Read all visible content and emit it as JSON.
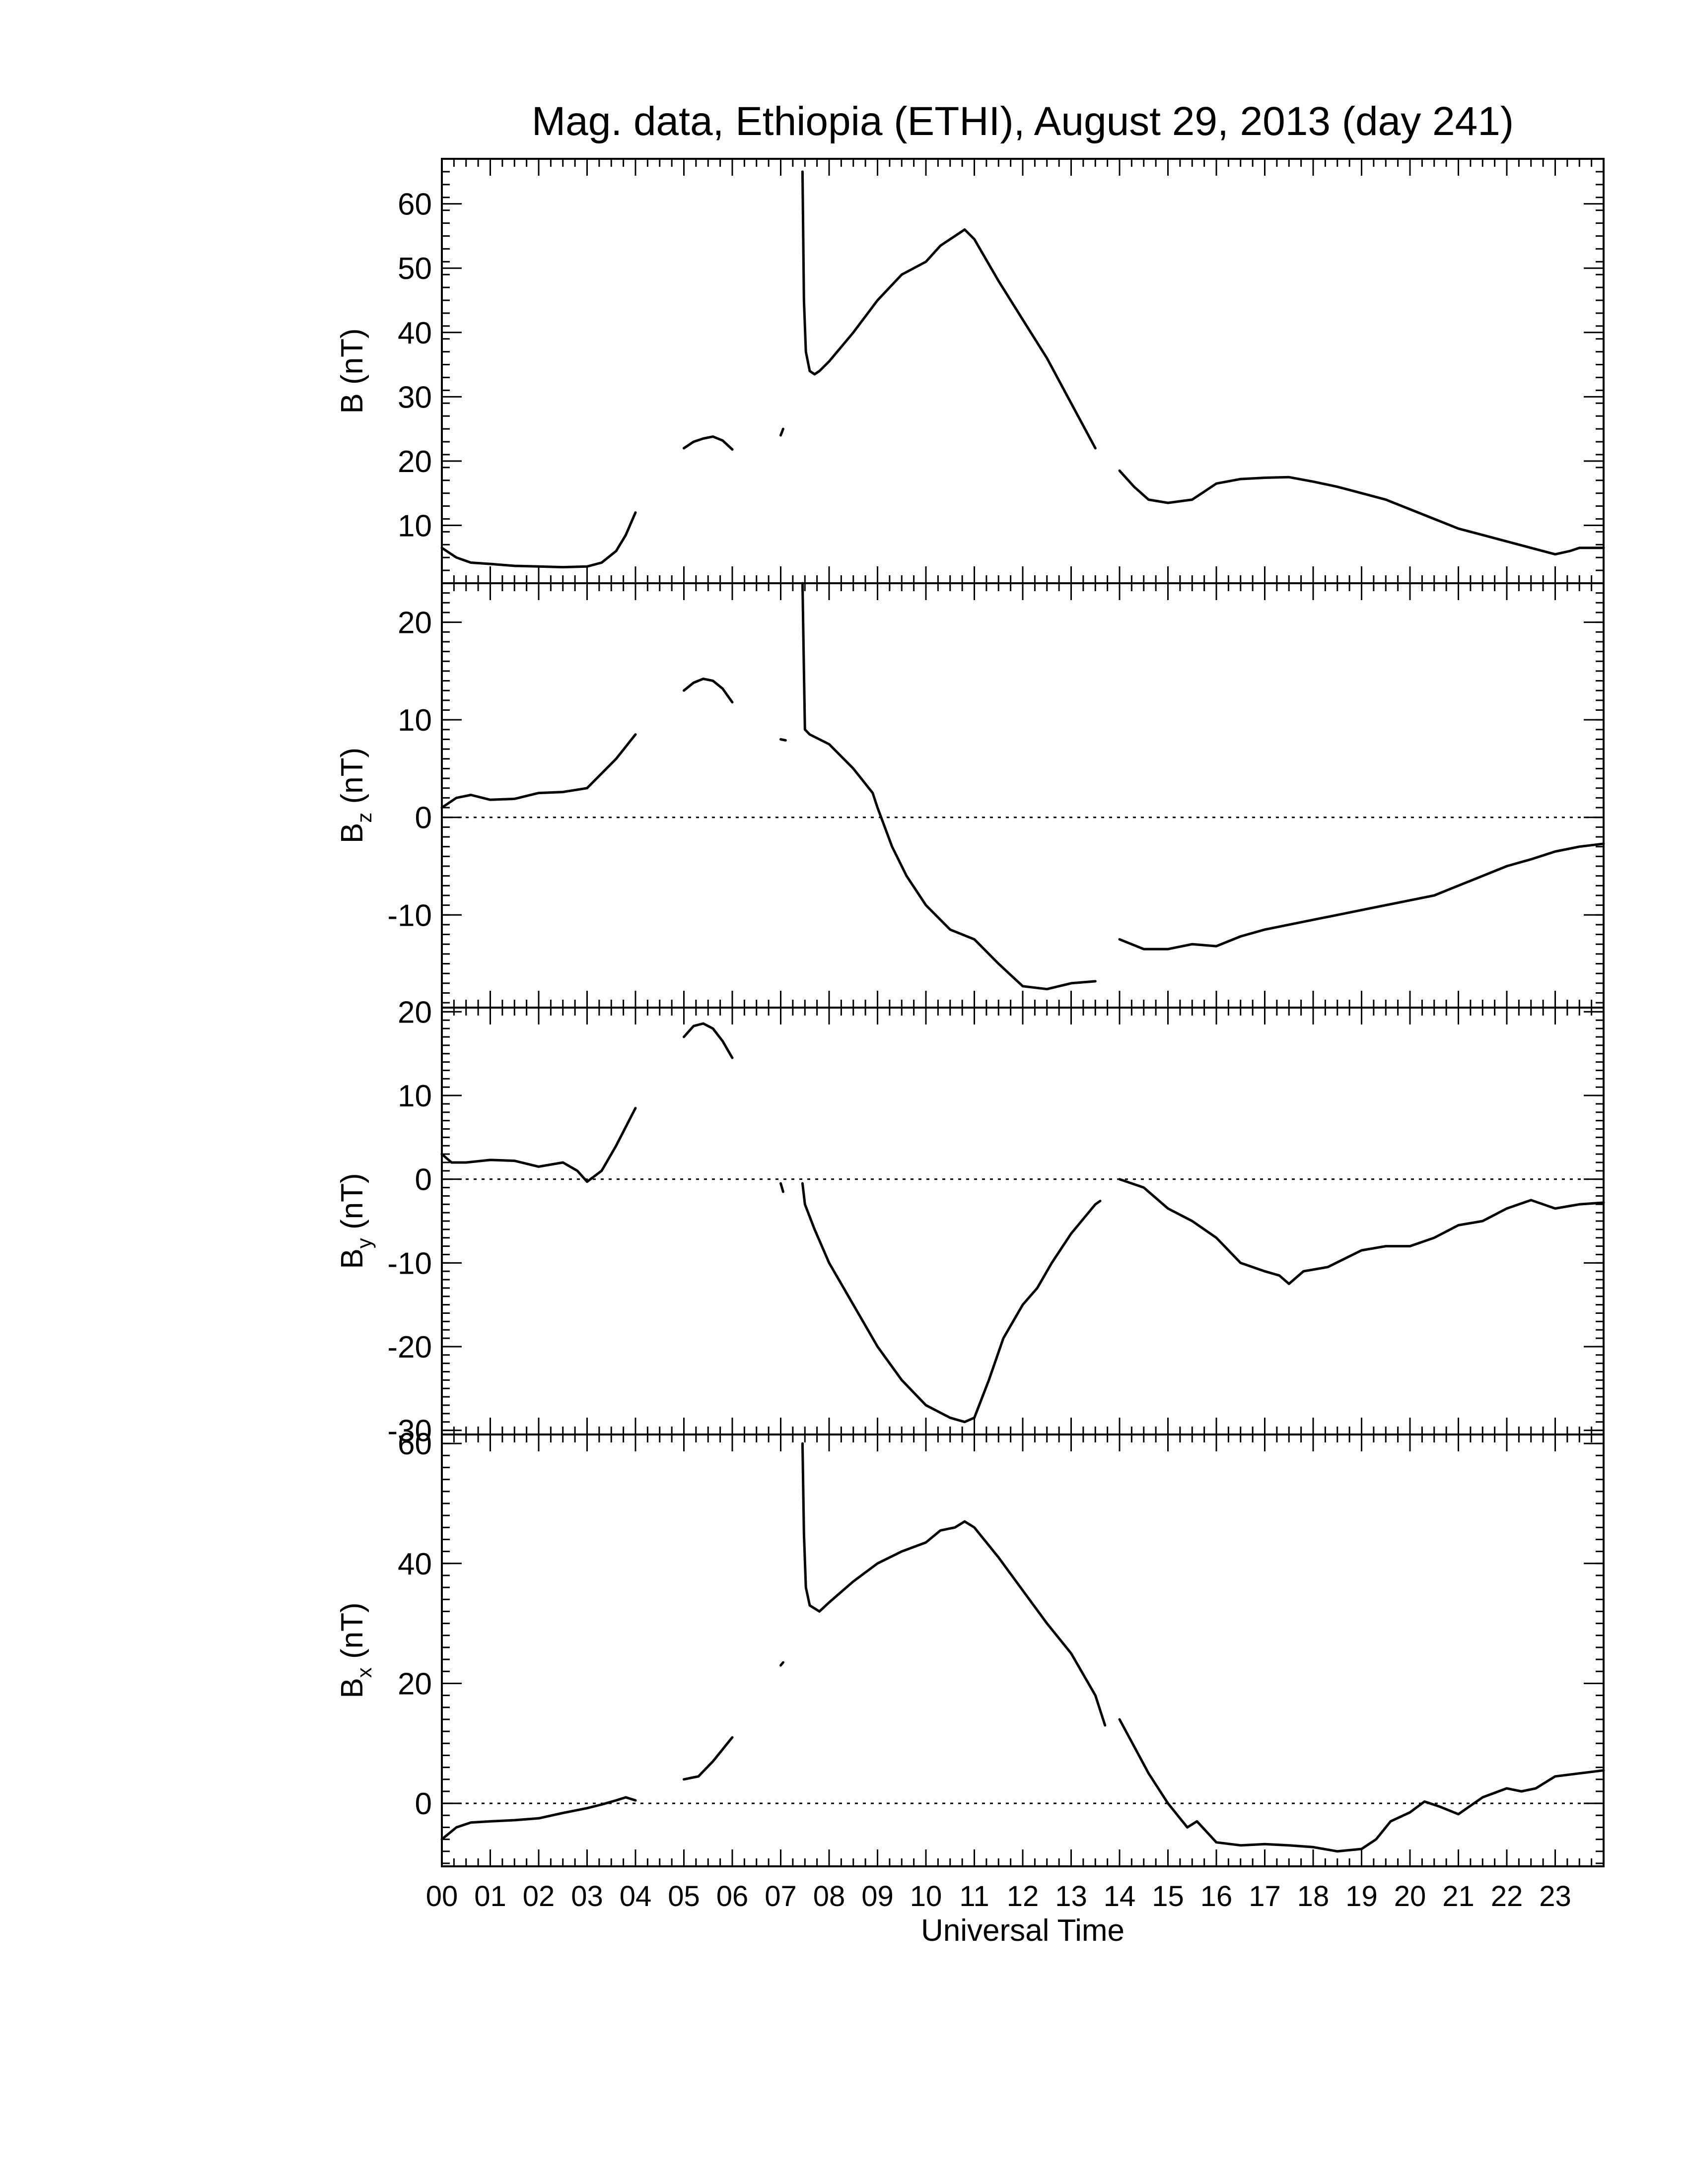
{
  "chart_data": {
    "type": "line",
    "title": "Mag. data, Ethiopia (ETHI), August 29, 2013 (day 241)",
    "xlabel": "Universal Time",
    "x_units": "hours UT",
    "xlim": [
      0,
      24
    ],
    "x_tick_labels": [
      "00",
      "01",
      "02",
      "03",
      "04",
      "05",
      "06",
      "07",
      "08",
      "09",
      "10",
      "11",
      "12",
      "13",
      "14",
      "15",
      "16",
      "17",
      "18",
      "19",
      "20",
      "21",
      "22",
      "23"
    ],
    "grid": false,
    "panels": [
      {
        "id": "B",
        "ylabel_main": "B",
        "ylabel_sub": "",
        "ylabel_unit": " (nT)",
        "ylim": [
          1,
          67
        ],
        "yticks": [
          10,
          20,
          30,
          40,
          50,
          60
        ],
        "ytick_labels": [
          "10",
          "20",
          "30",
          "40",
          "50",
          "60"
        ],
        "zero_line": false,
        "segments": [
          [
            [
              0,
              6.5
            ],
            [
              0.3,
              5
            ],
            [
              0.6,
              4.2
            ],
            [
              1,
              4
            ],
            [
              1.5,
              3.7
            ],
            [
              2,
              3.6
            ],
            [
              2.5,
              3.5
            ],
            [
              3,
              3.6
            ],
            [
              3.3,
              4.2
            ],
            [
              3.6,
              6
            ],
            [
              3.8,
              8.5
            ],
            [
              4,
              12
            ]
          ],
          [
            [
              5,
              22
            ],
            [
              5.2,
              23
            ],
            [
              5.4,
              23.5
            ],
            [
              5.6,
              23.8
            ],
            [
              5.8,
              23.2
            ],
            [
              6,
              21.8
            ]
          ],
          [
            [
              7,
              24
            ],
            [
              7.05,
              25
            ]
          ],
          [
            [
              7.45,
              65
            ],
            [
              7.48,
              45
            ],
            [
              7.52,
              37
            ],
            [
              7.6,
              34
            ],
            [
              7.7,
              33.5
            ],
            [
              7.8,
              34
            ],
            [
              8,
              35.5
            ],
            [
              8.5,
              40
            ],
            [
              9,
              45
            ],
            [
              9.5,
              49
            ],
            [
              10,
              51
            ],
            [
              10.3,
              53.5
            ],
            [
              10.6,
              55
            ],
            [
              10.8,
              56
            ],
            [
              11,
              54.5
            ],
            [
              11.5,
              48
            ],
            [
              12,
              42
            ],
            [
              12.5,
              36
            ],
            [
              13,
              29
            ],
            [
              13.5,
              22
            ]
          ],
          [
            [
              14,
              18.5
            ],
            [
              14.3,
              16
            ],
            [
              14.6,
              14
            ],
            [
              15,
              13.5
            ],
            [
              15.5,
              14
            ],
            [
              16,
              16.5
            ],
            [
              16.5,
              17.2
            ],
            [
              17,
              17.4
            ],
            [
              17.5,
              17.5
            ],
            [
              18,
              16.8
            ],
            [
              18.5,
              16
            ],
            [
              19,
              15
            ],
            [
              19.5,
              14
            ],
            [
              20,
              12.5
            ],
            [
              20.5,
              11
            ],
            [
              21,
              9.5
            ],
            [
              21.5,
              8.5
            ],
            [
              22,
              7.5
            ],
            [
              22.5,
              6.5
            ],
            [
              23,
              5.5
            ],
            [
              23.3,
              6
            ],
            [
              23.5,
              6.5
            ],
            [
              24,
              6.5
            ]
          ]
        ]
      },
      {
        "id": "Bz",
        "ylabel_main": "B",
        "ylabel_sub": "z",
        "ylabel_unit": " (nT)",
        "ylim": [
          -19.5,
          24
        ],
        "yticks": [
          -10,
          0,
          10,
          20
        ],
        "ytick_labels": [
          "-10",
          "0",
          "10",
          "20"
        ],
        "zero_line": true,
        "segments": [
          [
            [
              0,
              1
            ],
            [
              0.3,
              2
            ],
            [
              0.6,
              2.3
            ],
            [
              1,
              1.8
            ],
            [
              1.5,
              1.9
            ],
            [
              2,
              2.5
            ],
            [
              2.5,
              2.6
            ],
            [
              3,
              3
            ],
            [
              3.3,
              4.5
            ],
            [
              3.6,
              6
            ],
            [
              4,
              8.5
            ]
          ],
          [
            [
              5,
              13
            ],
            [
              5.2,
              13.8
            ],
            [
              5.4,
              14.2
            ],
            [
              5.6,
              14
            ],
            [
              5.8,
              13.2
            ],
            [
              6,
              11.8
            ]
          ],
          [
            [
              7,
              8
            ],
            [
              7.1,
              7.9
            ]
          ],
          [
            [
              7.45,
              24
            ],
            [
              7.48,
              15
            ],
            [
              7.5,
              9
            ],
            [
              7.6,
              8.5
            ],
            [
              8,
              7.5
            ],
            [
              8.5,
              5
            ],
            [
              8.9,
              2.5
            ],
            [
              9,
              1
            ],
            [
              9.3,
              -3
            ],
            [
              9.6,
              -6
            ],
            [
              10,
              -9
            ],
            [
              10.5,
              -11.5
            ],
            [
              11,
              -12.5
            ],
            [
              11.5,
              -15
            ],
            [
              12,
              -17.3
            ],
            [
              12.5,
              -17.6
            ],
            [
              13,
              -17
            ],
            [
              13.5,
              -16.8
            ]
          ],
          [
            [
              14,
              -12.5
            ],
            [
              14.5,
              -13.5
            ],
            [
              15,
              -13.5
            ],
            [
              15.5,
              -13
            ],
            [
              16,
              -13.2
            ],
            [
              16.5,
              -12.2
            ],
            [
              17,
              -11.5
            ],
            [
              17.5,
              -11
            ],
            [
              18,
              -10.5
            ],
            [
              18.5,
              -10
            ],
            [
              19,
              -9.5
            ],
            [
              20,
              -8.5
            ],
            [
              20.5,
              -8
            ],
            [
              21,
              -7
            ],
            [
              21.5,
              -6
            ],
            [
              22,
              -5
            ],
            [
              22.5,
              -4.3
            ],
            [
              23,
              -3.5
            ],
            [
              23.5,
              -3
            ],
            [
              24,
              -2.7
            ]
          ]
        ]
      },
      {
        "id": "By",
        "ylabel_main": "B",
        "ylabel_sub": "y",
        "ylabel_unit": " (nT)",
        "ylim": [
          -30.5,
          20.5
        ],
        "yticks": [
          -30,
          -20,
          -10,
          0,
          10,
          20
        ],
        "ytick_labels": [
          "-30",
          "-20",
          "-10",
          "0",
          "10",
          "20"
        ],
        "zero_line": true,
        "segments": [
          [
            [
              0,
              3
            ],
            [
              0.2,
              2
            ],
            [
              0.5,
              2
            ],
            [
              1,
              2.3
            ],
            [
              1.5,
              2.2
            ],
            [
              2,
              1.5
            ],
            [
              2.5,
              2
            ],
            [
              2.8,
              1
            ],
            [
              3,
              -0.3
            ],
            [
              3.3,
              1
            ],
            [
              3.6,
              4
            ],
            [
              4,
              8.5
            ]
          ],
          [
            [
              5,
              17
            ],
            [
              5.2,
              18.3
            ],
            [
              5.4,
              18.6
            ],
            [
              5.6,
              18
            ],
            [
              5.8,
              16.5
            ],
            [
              6,
              14.5
            ]
          ],
          [
            [
              7,
              -0.5
            ],
            [
              7.05,
              -1.5
            ]
          ],
          [
            [
              7.45,
              -0.5
            ],
            [
              7.5,
              -3
            ],
            [
              7.7,
              -6
            ],
            [
              8,
              -10
            ],
            [
              8.5,
              -15
            ],
            [
              9,
              -20
            ],
            [
              9.5,
              -24
            ],
            [
              10,
              -27
            ],
            [
              10.5,
              -28.5
            ],
            [
              10.8,
              -29
            ],
            [
              11,
              -28.5
            ],
            [
              11.3,
              -24
            ],
            [
              11.6,
              -19
            ],
            [
              12,
              -15
            ],
            [
              12.3,
              -13
            ],
            [
              12.6,
              -10
            ],
            [
              13,
              -6.5
            ],
            [
              13.5,
              -3
            ],
            [
              13.6,
              -2.6
            ]
          ],
          [
            [
              14,
              0
            ],
            [
              14.5,
              -1
            ],
            [
              15,
              -3.5
            ],
            [
              15.5,
              -5
            ],
            [
              16,
              -7
            ],
            [
              16.5,
              -10
            ],
            [
              17,
              -11
            ],
            [
              17.3,
              -11.5
            ],
            [
              17.5,
              -12.5
            ],
            [
              17.8,
              -11
            ],
            [
              18.3,
              -10.5
            ],
            [
              19,
              -8.5
            ],
            [
              19.5,
              -8
            ],
            [
              20,
              -8
            ],
            [
              20.5,
              -7
            ],
            [
              21,
              -5.5
            ],
            [
              21.5,
              -5
            ],
            [
              22,
              -3.5
            ],
            [
              22.5,
              -2.5
            ],
            [
              23,
              -3.5
            ],
            [
              23.5,
              -3
            ],
            [
              24,
              -2.8
            ]
          ]
        ]
      },
      {
        "id": "Bx",
        "ylabel_main": "B",
        "ylabel_sub": "x",
        "ylabel_unit": " (nT)",
        "ylim": [
          -10.5,
          61.5
        ],
        "yticks": [
          0,
          20,
          40,
          60
        ],
        "ytick_labels": [
          "0",
          "20",
          "40",
          "60"
        ],
        "zero_line": true,
        "segments": [
          [
            [
              0,
              -6
            ],
            [
              0.3,
              -4
            ],
            [
              0.6,
              -3.2
            ],
            [
              1,
              -3
            ],
            [
              1.5,
              -2.8
            ],
            [
              2,
              -2.5
            ],
            [
              2.5,
              -1.6
            ],
            [
              3,
              -0.8
            ],
            [
              3.3,
              -0.2
            ],
            [
              3.6,
              0.5
            ],
            [
              3.8,
              1
            ],
            [
              4,
              0.5
            ]
          ],
          [
            [
              5,
              4
            ],
            [
              5.3,
              4.5
            ],
            [
              5.6,
              7
            ],
            [
              6,
              11
            ]
          ],
          [
            [
              7,
              23
            ],
            [
              7.05,
              23.5
            ]
          ],
          [
            [
              7.45,
              60
            ],
            [
              7.48,
              45
            ],
            [
              7.52,
              36
            ],
            [
              7.6,
              33
            ],
            [
              7.8,
              32
            ],
            [
              8,
              33.5
            ],
            [
              8.5,
              37
            ],
            [
              9,
              40
            ],
            [
              9.5,
              42
            ],
            [
              10,
              43.5
            ],
            [
              10.3,
              45.5
            ],
            [
              10.6,
              46
            ],
            [
              10.8,
              47
            ],
            [
              11,
              46
            ],
            [
              11.5,
              41
            ],
            [
              12,
              35.5
            ],
            [
              12.5,
              30
            ],
            [
              13,
              25
            ],
            [
              13.5,
              18
            ],
            [
              13.7,
              13
            ]
          ],
          [
            [
              14,
              14
            ],
            [
              14.3,
              9.5
            ],
            [
              14.6,
              5
            ],
            [
              15,
              0
            ],
            [
              15.2,
              -2
            ],
            [
              15.4,
              -4
            ],
            [
              15.6,
              -3
            ],
            [
              16,
              -6.5
            ],
            [
              16.5,
              -7
            ],
            [
              17,
              -6.8
            ],
            [
              17.5,
              -7
            ],
            [
              18,
              -7.3
            ],
            [
              18.5,
              -8
            ],
            [
              19,
              -7.6
            ],
            [
              19.3,
              -6
            ],
            [
              19.6,
              -3
            ],
            [
              20,
              -1.5
            ],
            [
              20.3,
              0.3
            ],
            [
              20.6,
              -0.5
            ],
            [
              21,
              -1.8
            ],
            [
              21.5,
              1
            ],
            [
              22,
              2.5
            ],
            [
              22.3,
              2
            ],
            [
              22.6,
              2.5
            ],
            [
              23,
              4.5
            ],
            [
              23.5,
              5
            ],
            [
              24,
              5.5
            ]
          ]
        ]
      }
    ]
  }
}
